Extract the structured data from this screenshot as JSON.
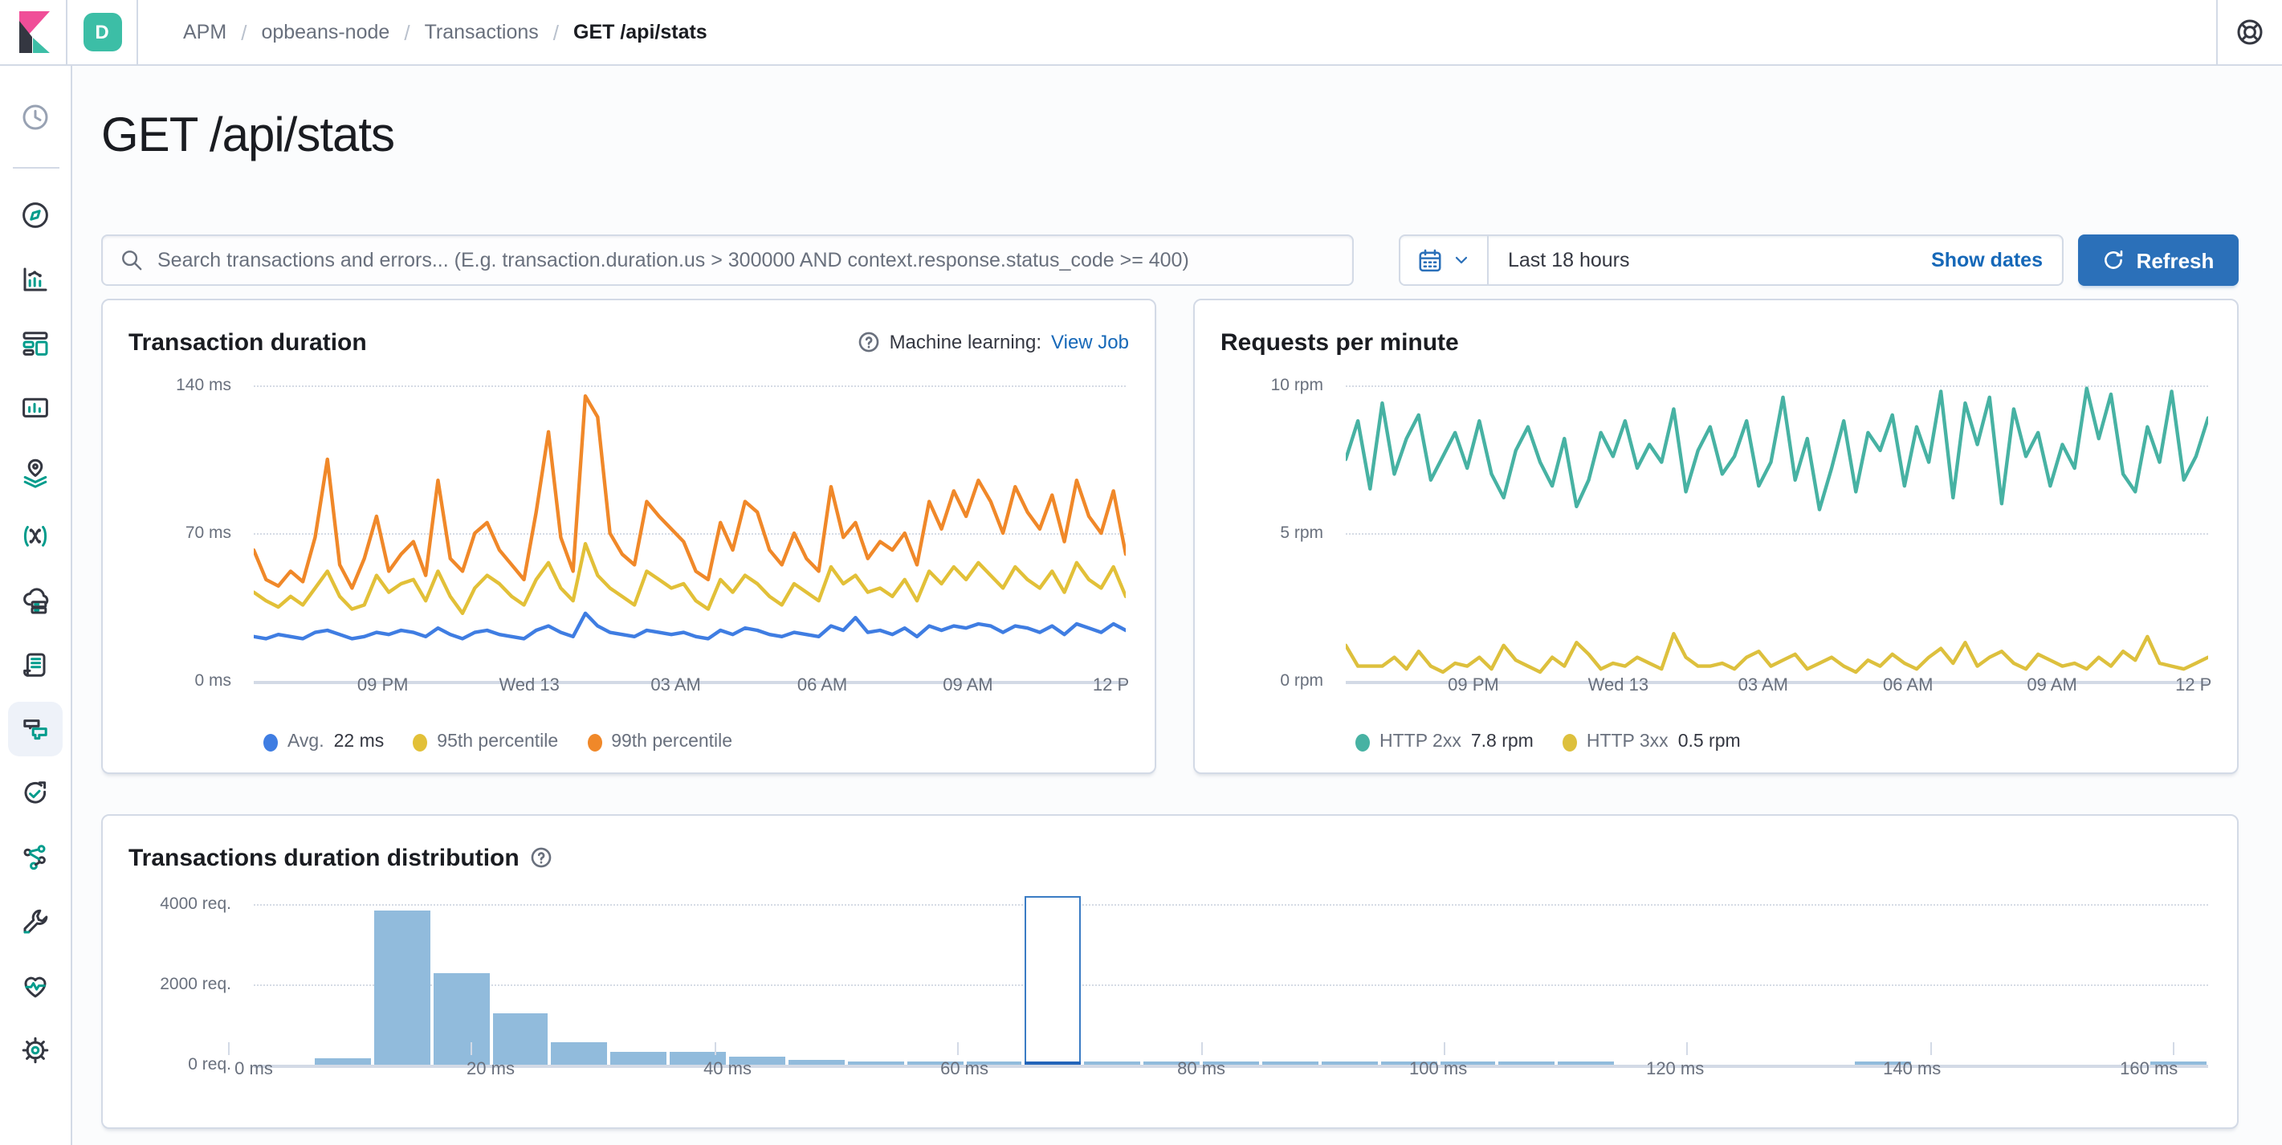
{
  "topbar": {
    "space_initial": "D",
    "breadcrumbs": [
      "APM",
      "opbeans-node",
      "Transactions",
      "GET /api/stats"
    ]
  },
  "sidebar": {
    "items": [
      {
        "name": "discover"
      },
      {
        "name": "visualize"
      },
      {
        "name": "dashboard"
      },
      {
        "name": "canvas"
      },
      {
        "name": "maps"
      },
      {
        "name": "machine-learning"
      },
      {
        "name": "infrastructure"
      },
      {
        "name": "logs"
      },
      {
        "name": "apm",
        "selected": true
      },
      {
        "name": "uptime"
      },
      {
        "name": "graph"
      },
      {
        "name": "dev-tools"
      },
      {
        "name": "monitoring"
      },
      {
        "name": "management"
      }
    ]
  },
  "page": {
    "title": "GET /api/stats"
  },
  "search": {
    "placeholder": "Search transactions and errors... (E.g. transaction.duration.us > 300000 AND context.response.status_code >= 400)"
  },
  "datepicker": {
    "range_label": "Last 18 hours",
    "show_dates_label": "Show dates",
    "refresh_label": "Refresh"
  },
  "colors": {
    "avg_blue": "#3f7de2",
    "p95_yellow": "#e2c038",
    "p99_orange": "#f08829",
    "http2xx_teal": "#47b2a3",
    "http3xx_yellow": "#ddc03d",
    "bar_blue": "#91bbdc",
    "bar_selected": "#2264b9",
    "selection_outline": "#3b7cc4",
    "link_blue": "#1668b8",
    "button_blue": "#2b70b9",
    "space_teal": "#3cbea6"
  },
  "chart_data": [
    {
      "type": "line",
      "title": "Transaction duration",
      "ml_prefix": "Machine learning: ",
      "ml_link": "View Job",
      "ylim": [
        0,
        140
      ],
      "y_ticks": [
        {
          "v": 140,
          "label": "140 ms"
        },
        {
          "v": 70,
          "label": "70 ms"
        },
        {
          "v": 0,
          "label": "0 ms"
        }
      ],
      "x_labels": [
        "09 PM",
        "Wed 13",
        "03 AM",
        "06 AM",
        "09 AM",
        "12 P"
      ],
      "x_label_pcts": [
        14.8,
        31.6,
        48.4,
        65.2,
        81.9,
        98.3
      ],
      "series": [
        {
          "name": "Avg.",
          "value_label": "22 ms",
          "color": "#3f7de2",
          "values": [
            21,
            20,
            22,
            21,
            20,
            23,
            24,
            22,
            20,
            21,
            23,
            22,
            24,
            23,
            21,
            25,
            22,
            20,
            23,
            24,
            22,
            21,
            20,
            24,
            26,
            23,
            21,
            32,
            26,
            23,
            22,
            21,
            24,
            23,
            22,
            23,
            21,
            20,
            24,
            22,
            25,
            24,
            22,
            21,
            23,
            22,
            21,
            26,
            24,
            30,
            23,
            24,
            22,
            25,
            21,
            26,
            24,
            26,
            25,
            27,
            26,
            23,
            26,
            25,
            23,
            26,
            22,
            27,
            25,
            23,
            27,
            24
          ]
        },
        {
          "name": "95th percentile",
          "value_label": "",
          "color": "#e2c038",
          "values": [
            42,
            38,
            35,
            40,
            36,
            44,
            52,
            40,
            34,
            36,
            50,
            42,
            46,
            48,
            38,
            52,
            40,
            32,
            44,
            50,
            46,
            40,
            36,
            48,
            56,
            44,
            38,
            65,
            50,
            44,
            40,
            36,
            52,
            48,
            44,
            46,
            38,
            34,
            48,
            42,
            50,
            46,
            40,
            36,
            46,
            42,
            38,
            54,
            46,
            50,
            42,
            44,
            40,
            48,
            38,
            52,
            46,
            54,
            48,
            56,
            50,
            44,
            54,
            48,
            44,
            52,
            42,
            56,
            48,
            44,
            54,
            40
          ]
        },
        {
          "name": "99th percentile",
          "value_label": "",
          "color": "#f08829",
          "values": [
            62,
            48,
            45,
            52,
            47,
            68,
            105,
            55,
            44,
            58,
            78,
            52,
            60,
            66,
            50,
            95,
            58,
            52,
            70,
            75,
            62,
            55,
            48,
            80,
            118,
            68,
            52,
            135,
            125,
            70,
            60,
            55,
            85,
            78,
            72,
            66,
            52,
            48,
            75,
            62,
            85,
            80,
            62,
            55,
            70,
            58,
            52,
            92,
            68,
            75,
            58,
            66,
            62,
            70,
            55,
            85,
            72,
            90,
            78,
            95,
            85,
            70,
            92,
            80,
            72,
            88,
            66,
            95,
            78,
            70,
            90,
            60
          ]
        }
      ]
    },
    {
      "type": "line",
      "title": "Requests per minute",
      "ylim": [
        0,
        10
      ],
      "y_ticks": [
        {
          "v": 10,
          "label": "10 rpm"
        },
        {
          "v": 5,
          "label": "5 rpm"
        },
        {
          "v": 0,
          "label": "0 rpm"
        }
      ],
      "x_labels": [
        "09 PM",
        "Wed 13",
        "03 AM",
        "06 AM",
        "09 AM",
        "12 P"
      ],
      "x_label_pcts": [
        14.8,
        31.6,
        48.4,
        65.2,
        81.9,
        98.3
      ],
      "series": [
        {
          "name": "HTTP 2xx",
          "value_label": "7.8 rpm",
          "color": "#47b2a3",
          "values": [
            7.5,
            8.8,
            6.5,
            9.4,
            7.0,
            8.2,
            9.0,
            6.8,
            7.6,
            8.4,
            7.2,
            8.8,
            7.0,
            6.2,
            7.8,
            8.6,
            7.4,
            6.6,
            8.2,
            5.9,
            6.8,
            8.4,
            7.6,
            8.8,
            7.2,
            8.0,
            7.4,
            9.2,
            6.4,
            7.8,
            8.6,
            7.0,
            7.6,
            8.8,
            6.6,
            7.4,
            9.6,
            6.8,
            8.2,
            5.8,
            7.2,
            8.8,
            6.4,
            8.4,
            7.8,
            9.0,
            6.6,
            8.6,
            7.4,
            9.8,
            6.2,
            9.4,
            8.0,
            9.6,
            6.0,
            9.2,
            7.6,
            8.4,
            6.6,
            8.0,
            7.2,
            9.9,
            8.2,
            9.7,
            7.0,
            6.4,
            8.6,
            7.4,
            9.8,
            6.8,
            7.6,
            8.9
          ]
        },
        {
          "name": "HTTP 3xx",
          "value_label": "0.5 rpm",
          "color": "#ddc03d",
          "values": [
            1.2,
            0.5,
            0.5,
            0.5,
            0.8,
            0.4,
            1.0,
            0.5,
            0.3,
            0.6,
            0.5,
            0.8,
            0.4,
            1.2,
            0.7,
            0.5,
            0.3,
            0.8,
            0.5,
            1.3,
            0.9,
            0.4,
            0.6,
            0.5,
            0.8,
            0.6,
            0.4,
            1.6,
            0.8,
            0.5,
            0.5,
            0.6,
            0.4,
            0.8,
            1.0,
            0.5,
            0.7,
            0.9,
            0.4,
            0.6,
            0.8,
            0.5,
            0.3,
            0.7,
            0.5,
            0.9,
            0.6,
            0.4,
            0.8,
            1.1,
            0.6,
            1.3,
            0.5,
            0.8,
            1.0,
            0.6,
            0.4,
            0.9,
            0.7,
            0.5,
            0.6,
            0.4,
            0.8,
            0.5,
            1.0,
            0.7,
            1.5,
            0.6,
            0.5,
            0.4,
            0.6,
            0.8
          ]
        }
      ]
    },
    {
      "type": "bar",
      "title": "Transactions duration distribution",
      "bucket_size_ms": 5,
      "ylim": [
        0,
        4000
      ],
      "y_ticks": [
        {
          "v": 4000,
          "label": "4000 req."
        },
        {
          "v": 2000,
          "label": "2000 req."
        },
        {
          "v": 0,
          "label": "0 req."
        }
      ],
      "x_labels": [
        "0 ms",
        "20 ms",
        "40 ms",
        "60 ms",
        "80 ms",
        "100 ms",
        "120 ms",
        "140 ms",
        "160 ms"
      ],
      "values": [
        0,
        150,
        3850,
        2300,
        1300,
        580,
        330,
        320,
        200,
        130,
        100,
        95,
        90,
        100,
        90,
        85,
        85,
        85,
        85,
        85,
        85,
        85,
        85,
        0,
        0,
        0,
        0,
        85,
        0,
        0,
        0,
        0,
        85
      ],
      "selected_index": 13
    }
  ]
}
